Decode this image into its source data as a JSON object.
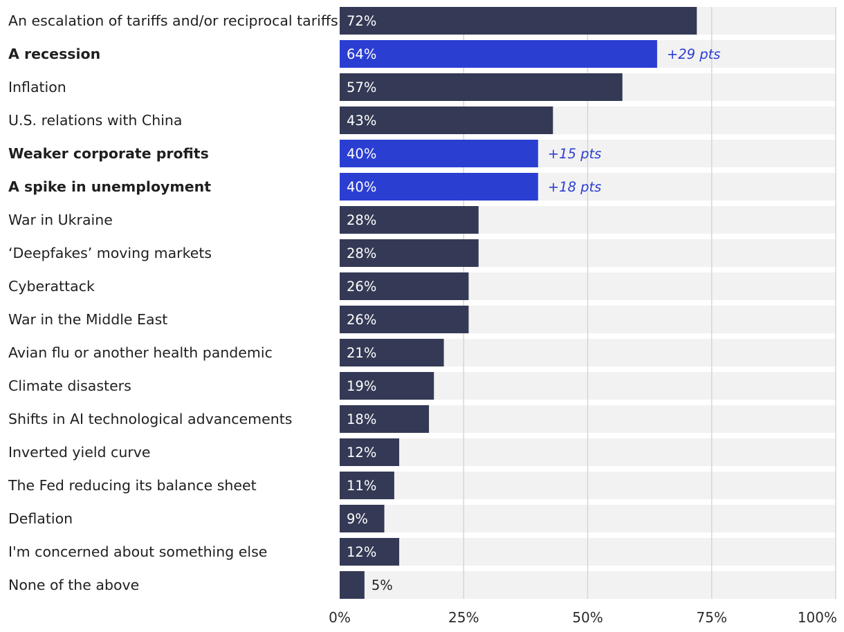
{
  "colors": {
    "bar_default": "#343a55",
    "bar_highlight": "#2b3ed2",
    "track": "#f2f2f2",
    "grid": "#d6d6d6",
    "label_text": "#1f1f1f",
    "value_text_inside": "#ffffff",
    "value_text_outside": "#1f1f1f",
    "annotation_text": "#2b3ed2"
  },
  "chart_data": {
    "type": "bar",
    "orientation": "horizontal",
    "title": "",
    "xlabel": "",
    "ylabel": "",
    "xlim": [
      0,
      100
    ],
    "x_ticks": [
      0,
      25,
      50,
      75,
      100
    ],
    "x_tick_labels": [
      "0%",
      "25%",
      "50%",
      "75%",
      "100%"
    ],
    "grid": true,
    "categories": [
      "An escalation of tariffs and/or reciprocal tariffs",
      "A recession",
      "Inflation",
      "U.S. relations with China",
      "Weaker corporate profits",
      "A spike in unemployment",
      "War in Ukraine",
      "‘Deepfakes’ moving markets",
      "Cyberattack",
      "War in the Middle East",
      "Avian flu or another health pandemic",
      "Climate disasters",
      "Shifts in AI technological advancements",
      "Inverted yield curve",
      "The Fed reducing its balance sheet",
      "Deflation",
      "I'm concerned about something else",
      "None of the above"
    ],
    "values": [
      72,
      64,
      57,
      43,
      40,
      40,
      28,
      28,
      26,
      26,
      21,
      19,
      18,
      12,
      11,
      9,
      12,
      5
    ],
    "value_labels": [
      "72%",
      "64%",
      "57%",
      "43%",
      "40%",
      "40%",
      "28%",
      "28%",
      "26%",
      "26%",
      "21%",
      "19%",
      "18%",
      "12%",
      "11%",
      "9%",
      "12%",
      "5%"
    ],
    "highlighted": [
      false,
      true,
      false,
      false,
      true,
      true,
      false,
      false,
      false,
      false,
      false,
      false,
      false,
      false,
      false,
      false,
      false,
      false
    ],
    "annotations": [
      "",
      "+29 pts",
      "",
      "",
      "+15 pts",
      "+18 pts",
      "",
      "",
      "",
      "",
      "",
      "",
      "",
      "",
      "",
      "",
      "",
      ""
    ]
  }
}
